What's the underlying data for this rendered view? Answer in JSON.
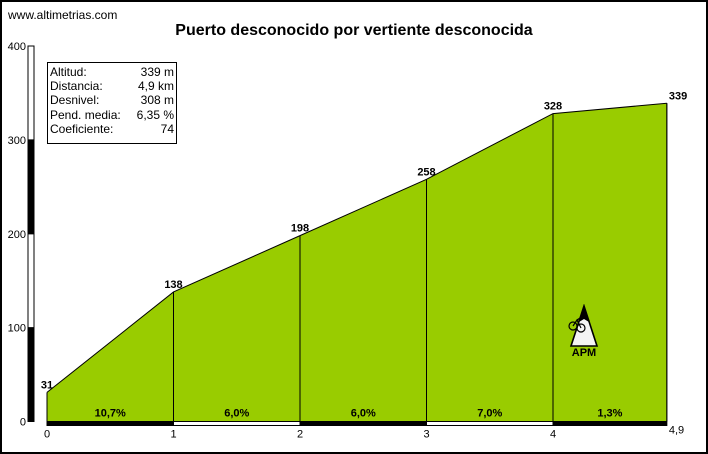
{
  "site": "www.altimetrias.com",
  "chart_data": {
    "type": "area",
    "title": "Puerto desconocido por vertiente desconocida",
    "x": [
      0,
      1,
      2,
      3,
      4,
      4.9
    ],
    "y": [
      31,
      138,
      198,
      258,
      328,
      339
    ],
    "point_labels": [
      "31",
      "138",
      "198",
      "258",
      "328",
      "339"
    ],
    "segment_grades": [
      "10,7%",
      "6,0%",
      "6,0%",
      "7,0%",
      "1,3%"
    ],
    "xticks": [
      "0",
      "1",
      "2",
      "3",
      "4",
      "4,9"
    ],
    "yticks": [
      "0",
      "100",
      "200",
      "300",
      "400"
    ],
    "xlim": [
      0,
      4.9
    ],
    "ylim": [
      0,
      400
    ],
    "fill_color": "#99CC00",
    "line_color": "#000000"
  },
  "info": {
    "rows": [
      {
        "label": "Altitud:",
        "value": "339 m"
      },
      {
        "label": "Distancia:",
        "value": "4,9 km"
      },
      {
        "label": "Desnivel:",
        "value": "308 m"
      },
      {
        "label": "Pend. media:",
        "value": "6,35 %"
      },
      {
        "label": "Coeficiente:",
        "value": "74"
      }
    ]
  },
  "logo": {
    "text": "APM"
  }
}
